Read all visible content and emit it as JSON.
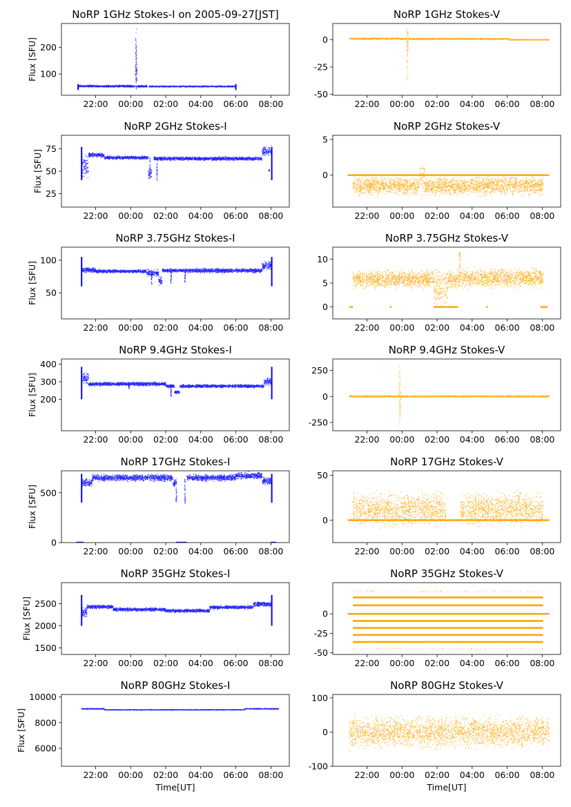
{
  "figure": {
    "x_ticks": [
      "22:00",
      "00:00",
      "02:00",
      "04:00",
      "06:00",
      "08:00"
    ],
    "x_tick_hours": [
      22,
      24,
      26,
      28,
      30,
      32
    ],
    "x_range_hours": [
      20.05,
      33.05
    ],
    "xlabel": "Time[UT]",
    "ylabel": "Flux [SFU]",
    "colors": {
      "stokes_i": "#0000ff",
      "stokes_v": "#ffa500"
    }
  },
  "chart_data": [
    {
      "type": "scatter",
      "panel": "i",
      "row": 0,
      "series": "Stokes-I",
      "title": "NoRP 1GHz Stokes-I on 2005-09-27[JST]",
      "ylabel": "Flux [SFU]",
      "xlabel": "",
      "ylim": [
        20,
        290
      ],
      "yticks": [
        100,
        200
      ],
      "x_start": 21.0,
      "x_end": 30.0,
      "segments": [
        [
          21.0,
          24.25,
          54,
          3
        ],
        [
          24.25,
          24.37,
          100,
          40
        ],
        [
          24.37,
          24.95,
          54,
          3
        ],
        [
          25.05,
          30.0,
          53,
          2
        ]
      ],
      "spikes": [
        [
          24.3,
          270,
          40
        ],
        [
          24.32,
          205,
          40
        ]
      ],
      "edge_low": 40,
      "edge_high": 62
    },
    {
      "type": "scatter",
      "panel": "v",
      "row": 0,
      "series": "Stokes-V",
      "title": "NoRP 1GHz Stokes-V",
      "ylabel": "",
      "xlabel": "",
      "ylim": [
        -51,
        15
      ],
      "yticks": [
        0,
        -25,
        -50
      ],
      "x_start": 21.0,
      "x_end": 32.4,
      "segments": [
        [
          21.0,
          24.25,
          1,
          0.6
        ],
        [
          24.25,
          24.37,
          -5,
          10
        ],
        [
          24.37,
          30.1,
          0.8,
          0.6
        ],
        [
          30.1,
          32.4,
          0,
          0.4
        ]
      ],
      "spikes": [
        [
          24.3,
          11,
          -38
        ]
      ]
    },
    {
      "type": "scatter",
      "panel": "i",
      "row": 1,
      "series": "Stokes-I",
      "title": "NoRP 2GHz Stokes-I",
      "ylabel": "Flux [SFU]",
      "xlabel": "",
      "ylim": [
        10,
        90
      ],
      "yticks": [
        25,
        50,
        75
      ],
      "x_start": 21.2,
      "x_end": 32.05,
      "segments": [
        [
          21.2,
          21.6,
          55,
          10
        ],
        [
          21.6,
          22.5,
          68,
          2
        ],
        [
          22.5,
          25.0,
          65,
          1.5
        ],
        [
          25.0,
          25.2,
          48,
          5
        ],
        [
          25.3,
          31.5,
          64,
          1.5
        ],
        [
          31.5,
          32.05,
          72,
          4
        ]
      ],
      "spikes": [
        [
          25.1,
          66,
          42
        ],
        [
          25.5,
          66,
          40
        ],
        [
          31.9,
          52,
          50
        ]
      ],
      "edge_low": 40,
      "edge_high": 77
    },
    {
      "type": "scatter",
      "panel": "v",
      "row": 1,
      "series": "Stokes-V",
      "title": "NoRP 2GHz Stokes-V",
      "ylabel": "",
      "xlabel": "",
      "ylim": [
        -4.5,
        5.6
      ],
      "yticks": [
        5,
        0
      ],
      "x_start": 21.2,
      "x_end": 32.05,
      "segments": [
        [
          21.2,
          25.0,
          -1.5,
          1.0
        ],
        [
          25.0,
          25.3,
          -0.5,
          1.8
        ],
        [
          25.3,
          32.05,
          -1.5,
          1.0
        ]
      ],
      "baseline": [
        20.9,
        32.4,
        0
      ]
    },
    {
      "type": "scatter",
      "panel": "i",
      "row": 2,
      "series": "Stokes-I",
      "title": "NoRP 3.75GHz Stokes-I",
      "ylabel": "Flux [SFU]",
      "xlabel": "",
      "ylim": [
        10,
        120
      ],
      "yticks": [
        50,
        100
      ],
      "x_start": 21.2,
      "x_end": 32.05,
      "segments": [
        [
          21.2,
          22.0,
          85,
          3
        ],
        [
          22.0,
          24.9,
          83,
          2
        ],
        [
          24.9,
          25.6,
          80,
          4
        ],
        [
          25.6,
          25.8,
          68,
          5
        ],
        [
          25.8,
          27.2,
          84,
          2
        ],
        [
          27.2,
          31.5,
          84,
          2.5
        ],
        [
          31.5,
          32.05,
          92,
          5
        ]
      ],
      "spikes": [
        [
          25.2,
          85,
          62
        ],
        [
          26.3,
          85,
          65
        ],
        [
          27.1,
          85,
          66
        ]
      ],
      "edge_low": 60,
      "edge_high": 105
    },
    {
      "type": "scatter",
      "panel": "v",
      "row": 2,
      "series": "Stokes-V",
      "title": "NoRP 3.75GHz Stokes-V",
      "ylabel": "",
      "xlabel": "",
      "ylim": [
        -2.5,
        12.5
      ],
      "yticks": [
        10,
        5,
        0
      ],
      "x_start": 21.2,
      "x_end": 32.05,
      "segments": [
        [
          21.2,
          25.8,
          5.8,
          1.4
        ],
        [
          25.8,
          26.6,
          4,
          3
        ],
        [
          26.6,
          27.2,
          5.5,
          1.5
        ],
        [
          27.2,
          32.05,
          6.0,
          1.5
        ]
      ],
      "zero_segments": [
        [
          21.0,
          21.2
        ],
        [
          23.3,
          23.4
        ],
        [
          25.8,
          26.6
        ],
        [
          26.6,
          27.2
        ],
        [
          28.8,
          28.9
        ],
        [
          31.9,
          32.3
        ]
      ],
      "spikes": [
        [
          27.3,
          11.5,
          8
        ]
      ]
    },
    {
      "type": "scatter",
      "panel": "i",
      "row": 3,
      "series": "Stokes-I",
      "title": "NoRP 9.4GHz Stokes-I",
      "ylabel": "Flux [SFU]",
      "xlabel": "",
      "ylim": [
        20,
        430
      ],
      "yticks": [
        200,
        300,
        400
      ],
      "x_start": 21.2,
      "x_end": 32.05,
      "segments": [
        [
          21.2,
          21.6,
          320,
          25
        ],
        [
          21.6,
          26.0,
          287,
          8
        ],
        [
          26.0,
          26.5,
          275,
          8
        ],
        [
          26.5,
          26.8,
          240,
          6
        ],
        [
          26.8,
          31.6,
          275,
          7
        ],
        [
          31.6,
          32.05,
          300,
          15
        ]
      ],
      "spikes": [
        [
          23.9,
          300,
          260
        ],
        [
          26.3,
          280,
          215
        ]
      ],
      "edge_low": 200,
      "edge_high": 385
    },
    {
      "type": "scatter",
      "panel": "v",
      "row": 3,
      "series": "Stokes-V",
      "title": "NoRP 9.4GHz Stokes-V",
      "ylabel": "",
      "xlabel": "",
      "ylim": [
        -330,
        360
      ],
      "yticks": [
        250,
        0,
        -250
      ],
      "x_start": 21.0,
      "x_end": 32.4,
      "segments": [
        [
          21.0,
          32.4,
          0,
          6
        ]
      ],
      "spikes": [
        [
          23.85,
          300,
          -290
        ],
        [
          23.9,
          200,
          -200
        ]
      ]
    },
    {
      "type": "scatter",
      "panel": "i",
      "row": 4,
      "series": "Stokes-I",
      "title": "NoRP 17GHz Stokes-I",
      "ylabel": "Flux [SFU]",
      "xlabel": "",
      "ylim": [
        0,
        720
      ],
      "yticks": [
        0,
        500
      ],
      "x_start": 21.2,
      "x_end": 32.05,
      "segments": [
        [
          21.2,
          21.8,
          600,
          30
        ],
        [
          21.8,
          26.4,
          650,
          25
        ],
        [
          26.4,
          26.6,
          600,
          30
        ],
        [
          27.2,
          30.0,
          650,
          25
        ],
        [
          30.0,
          31.5,
          670,
          25
        ],
        [
          31.5,
          32.05,
          620,
          30
        ]
      ],
      "spikes": [
        [
          26.6,
          640,
          400
        ],
        [
          27.1,
          640,
          390
        ]
      ],
      "zero_segments": [
        [
          20.9,
          21.3
        ],
        [
          26.6,
          27.2
        ],
        [
          32.0,
          32.3
        ]
      ],
      "edge_low": 400,
      "edge_high": 690
    },
    {
      "type": "scatter",
      "panel": "v",
      "row": 4,
      "series": "Stokes-V",
      "title": "NoRP 17GHz Stokes-V",
      "ylabel": "",
      "xlabel": "",
      "ylim": [
        -25,
        55
      ],
      "yticks": [
        50,
        0
      ],
      "x_start": 21.2,
      "x_end": 32.05,
      "segments": [
        [
          21.2,
          26.5,
          12,
          14
        ],
        [
          27.3,
          32.05,
          12,
          14
        ]
      ],
      "baseline": [
        20.9,
        32.4,
        0
      ]
    },
    {
      "type": "scatter",
      "panel": "i",
      "row": 5,
      "series": "Stokes-I",
      "title": "NoRP 35GHz Stokes-I",
      "ylabel": "Flux [SFU]",
      "xlabel": "",
      "ylim": [
        1350,
        2980
      ],
      "yticks": [
        1500,
        2000,
        2500
      ],
      "x_start": 21.2,
      "x_end": 32.05,
      "segments": [
        [
          21.2,
          21.5,
          2300,
          80
        ],
        [
          21.5,
          23.0,
          2430,
          30
        ],
        [
          23.0,
          26.0,
          2370,
          30
        ],
        [
          26.0,
          28.5,
          2340,
          30
        ],
        [
          28.5,
          31.0,
          2420,
          30
        ],
        [
          31.0,
          32.05,
          2490,
          40
        ]
      ],
      "edge_low": 2000,
      "edge_high": 2700
    },
    {
      "type": "scatter",
      "panel": "v",
      "row": 5,
      "series": "Stokes-V",
      "title": "NoRP 35GHz Stokes-V",
      "ylabel": "",
      "xlabel": "",
      "ylim": [
        -52,
        40
      ],
      "yticks": [
        0,
        -25,
        -50
      ],
      "x_start": 21.2,
      "x_end": 32.05,
      "levels": [
        21,
        11,
        0,
        -9,
        -18,
        -27,
        -36
      ],
      "baseline": [
        20.9,
        32.4,
        0
      ],
      "outliers": [
        29,
        -45
      ]
    },
    {
      "type": "scatter",
      "panel": "i",
      "row": 6,
      "series": "Stokes-I",
      "title": "NoRP 80GHz Stokes-I",
      "ylabel": "Flux [SFU]",
      "xlabel": "Time[UT]",
      "ylim": [
        4600,
        10200
      ],
      "yticks": [
        6000,
        8000,
        10000
      ],
      "x_start": 21.2,
      "x_end": 32.45,
      "segments": [
        [
          21.2,
          22.5,
          9080,
          30
        ],
        [
          22.5,
          30.5,
          9000,
          25
        ],
        [
          30.5,
          32.45,
          9080,
          30
        ]
      ]
    },
    {
      "type": "scatter",
      "panel": "v",
      "row": 6,
      "series": "Stokes-V",
      "title": "NoRP 80GHz Stokes-V",
      "ylabel": "",
      "xlabel": "Time[UT]",
      "ylim": [
        -100,
        110
      ],
      "yticks": [
        100,
        0,
        -100
      ],
      "x_start": 21.0,
      "x_end": 32.4,
      "segments": [
        [
          21.0,
          32.4,
          0,
          35
        ]
      ]
    }
  ]
}
